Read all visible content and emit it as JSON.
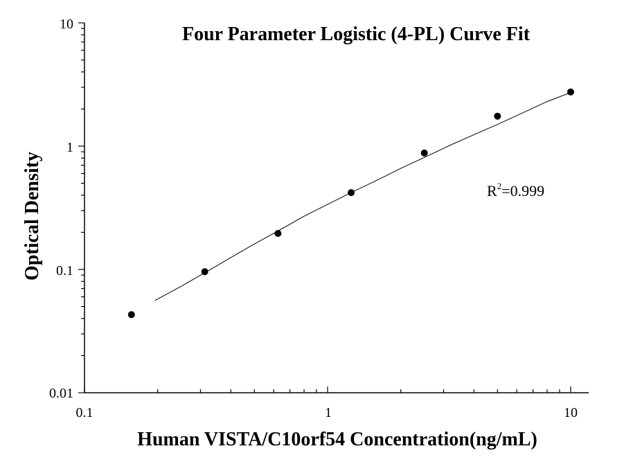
{
  "chart_data": {
    "type": "scatter",
    "title": "Four Parameter Logistic (4-PL) Curve Fit",
    "xlabel": "Human VISTA/C10orf54 Concentration(ng/mL)",
    "ylabel": "Optical Density",
    "x_scale": "log",
    "y_scale": "log",
    "xlim": [
      0.1,
      10
    ],
    "ylim": [
      0.01,
      10
    ],
    "x_ticks": [
      "0.1",
      "1",
      "10"
    ],
    "y_ticks": [
      "0.01",
      "0.1",
      "1",
      "10"
    ],
    "grid": false,
    "series": [
      {
        "x": [
          0.156,
          0.3125,
          0.625,
          1.25,
          2.5,
          5,
          10
        ],
        "y": [
          0.043,
          0.096,
          0.196,
          0.42,
          0.88,
          1.75,
          2.75
        ]
      }
    ],
    "fit_curve": {
      "type": "4PL",
      "x": [
        0.195,
        0.25,
        0.3125,
        0.4,
        0.5,
        0.625,
        0.8,
        1,
        1.25,
        1.6,
        2,
        2.5,
        3.2,
        4,
        5,
        6.3,
        8,
        10
      ],
      "y": [
        0.056,
        0.073,
        0.094,
        0.125,
        0.161,
        0.205,
        0.27,
        0.337,
        0.42,
        0.53,
        0.66,
        0.81,
        1.02,
        1.24,
        1.5,
        1.85,
        2.3,
        2.72
      ]
    },
    "annotation": {
      "label": "R",
      "superscript": "2",
      "value": "=0.999"
    }
  }
}
